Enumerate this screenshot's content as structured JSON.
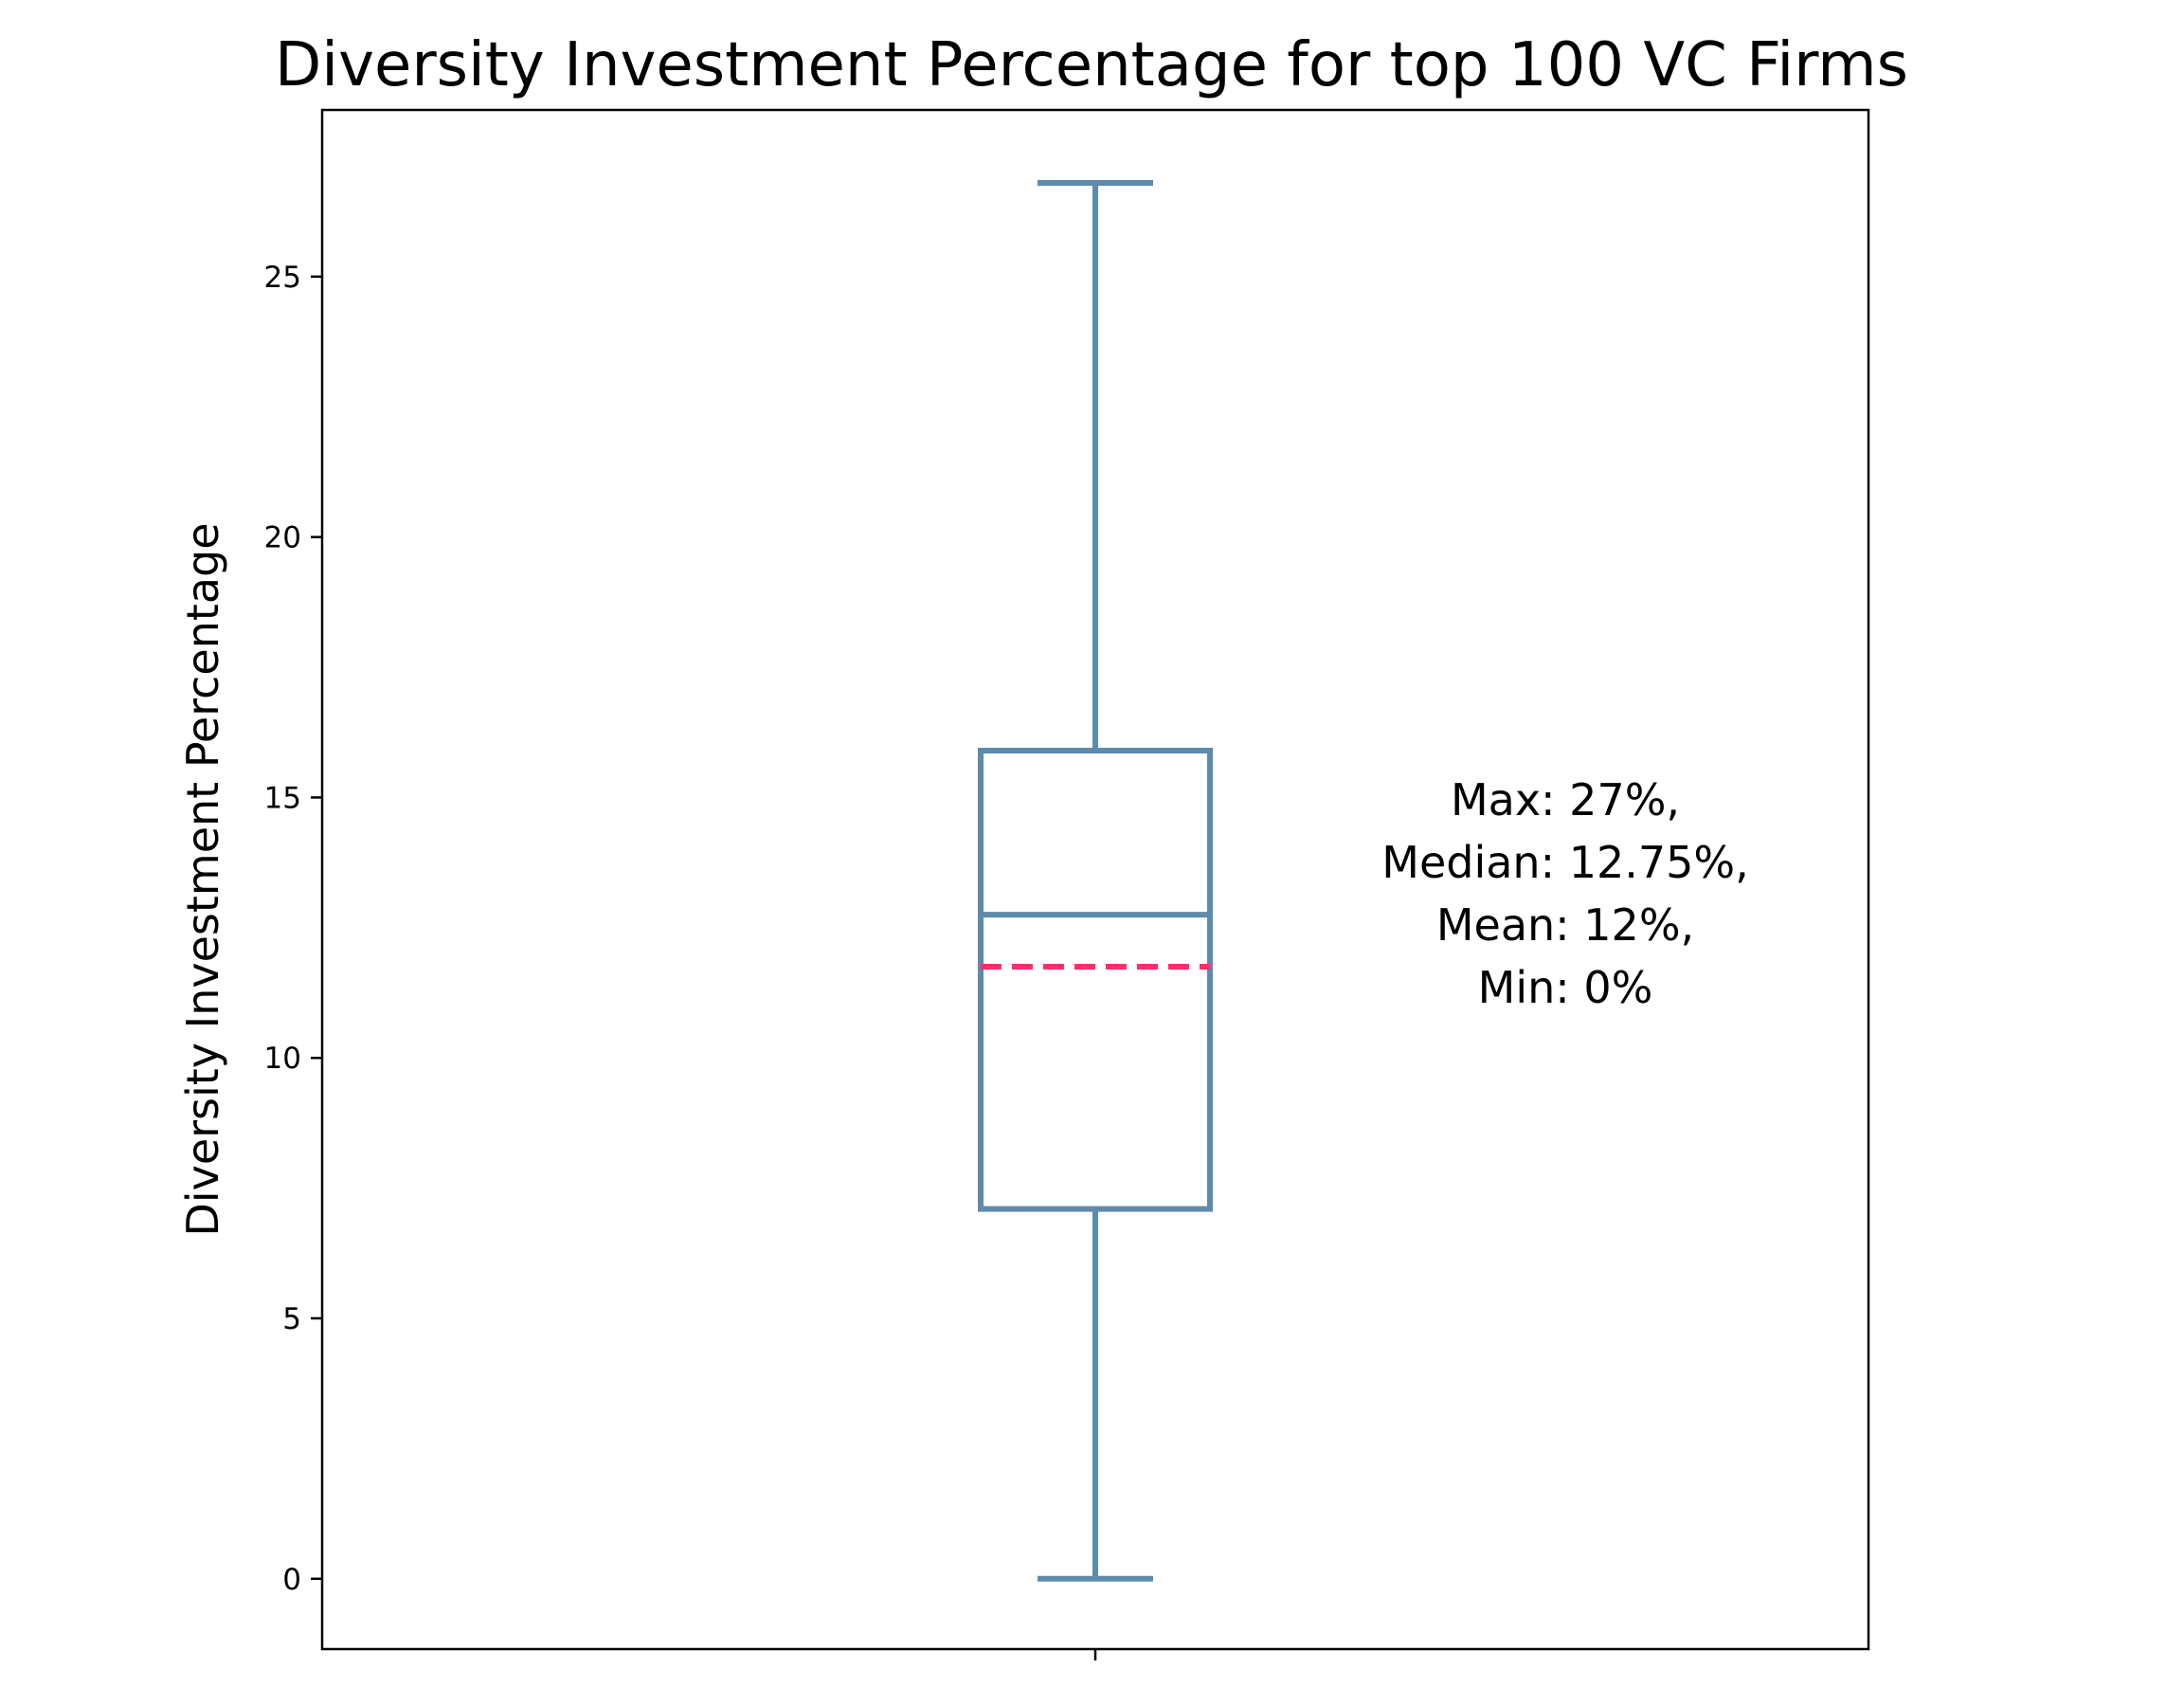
{
  "chart_data": {
    "type": "box",
    "title": "Diversity Investment Percentage for top 100 VC Firms",
    "xlabel": "",
    "ylabel": "Diversity Investment Percentage",
    "ylim": [
      -1.35,
      28.2
    ],
    "yticks": [
      0,
      5,
      10,
      15,
      20,
      25
    ],
    "ytick_labels": [
      "0",
      "5",
      "10",
      "15",
      "20",
      "25"
    ],
    "grid": false,
    "box": {
      "whisker_low": 0,
      "q1": 7.1,
      "median": 12.75,
      "mean": 11.75,
      "q3": 15.9,
      "whisker_high": 26.8
    },
    "annotation_lines": [
      "Max: 27%,",
      "Median: 12.75%,",
      "Mean: 12%,",
      "Min: 0%"
    ],
    "colors": {
      "box": "#5e8aab",
      "mean_line": "#ff2d6a",
      "axes": "#000000"
    }
  }
}
